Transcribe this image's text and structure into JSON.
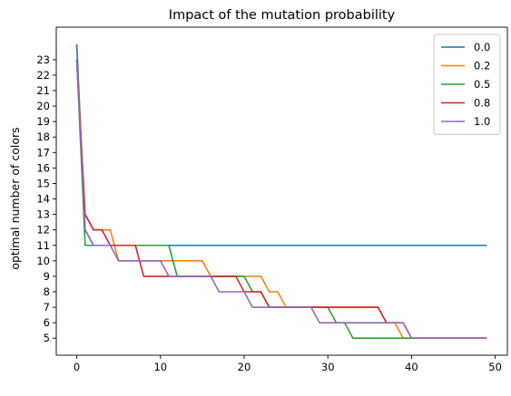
{
  "chart_data": {
    "type": "line",
    "title": "Impact of the mutation probability",
    "xlabel": "",
    "ylabel": "optimal number of colors",
    "xlim": [
      -2.45,
      51.45
    ],
    "ylim": [
      3.9,
      25.1
    ],
    "xticks": [
      0,
      10,
      20,
      30,
      40,
      50
    ],
    "yticks": [
      5,
      6,
      7,
      8,
      9,
      10,
      11,
      12,
      13,
      14,
      15,
      16,
      17,
      18,
      19,
      20,
      21,
      22,
      23
    ],
    "grid": false,
    "legend_position": "top-right",
    "series": [
      {
        "name": "0.0",
        "color": "#1f77b4",
        "points": [
          [
            0,
            24
          ],
          [
            1,
            12
          ],
          [
            2,
            11
          ],
          [
            49,
            11
          ]
        ]
      },
      {
        "name": "0.2",
        "color": "#ff7f0e",
        "points": [
          [
            0,
            23
          ],
          [
            1,
            13
          ],
          [
            2,
            12
          ],
          [
            4,
            12
          ],
          [
            5,
            10
          ],
          [
            11,
            10
          ],
          [
            15,
            10
          ],
          [
            16,
            9
          ],
          [
            22,
            9
          ],
          [
            23,
            8
          ],
          [
            24,
            8
          ],
          [
            25,
            7
          ],
          [
            27,
            7
          ],
          [
            28,
            7
          ],
          [
            36,
            7
          ],
          [
            37,
            6
          ],
          [
            38,
            6
          ],
          [
            39,
            5
          ],
          [
            49,
            5
          ]
        ]
      },
      {
        "name": "0.5",
        "color": "#2ca02c",
        "points": [
          [
            0,
            23
          ],
          [
            1,
            11
          ],
          [
            2,
            11
          ],
          [
            11,
            11
          ],
          [
            12,
            9
          ],
          [
            20,
            9
          ],
          [
            21,
            8
          ],
          [
            22,
            8
          ],
          [
            23,
            7
          ],
          [
            30,
            7
          ],
          [
            31,
            6
          ],
          [
            32,
            6
          ],
          [
            33,
            5
          ],
          [
            49,
            5
          ]
        ]
      },
      {
        "name": "0.8",
        "color": "#d62728",
        "points": [
          [
            0,
            23
          ],
          [
            1,
            13
          ],
          [
            2,
            12
          ],
          [
            3,
            12
          ],
          [
            4,
            11
          ],
          [
            7,
            11
          ],
          [
            8,
            9
          ],
          [
            19,
            9
          ],
          [
            20,
            8
          ],
          [
            22,
            8
          ],
          [
            23,
            7
          ],
          [
            36,
            7
          ],
          [
            37,
            6
          ],
          [
            38,
            6
          ],
          [
            39,
            6
          ],
          [
            40,
            5
          ],
          [
            49,
            5
          ]
        ]
      },
      {
        "name": "1.0",
        "color": "#9467bd",
        "points": [
          [
            0,
            23
          ],
          [
            1,
            12
          ],
          [
            2,
            11
          ],
          [
            4,
            11
          ],
          [
            5,
            10
          ],
          [
            10,
            10
          ],
          [
            11,
            9
          ],
          [
            16,
            9
          ],
          [
            17,
            8
          ],
          [
            20,
            8
          ],
          [
            21,
            7
          ],
          [
            28,
            7
          ],
          [
            29,
            6
          ],
          [
            39,
            6
          ],
          [
            40,
            5
          ],
          [
            49,
            5
          ]
        ]
      }
    ]
  }
}
